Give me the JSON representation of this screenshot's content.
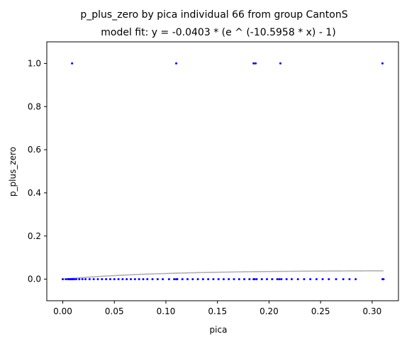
{
  "chart_data": {
    "type": "scatter",
    "title_line1": "p_plus_zero by pica individual 66 from group CantonS",
    "title_line2": "model fit: y = -0.0403 * (e ^ (-10.5958 * x) - 1)",
    "xlabel": "pica",
    "ylabel": "p_plus_zero",
    "xlim": [
      -0.0155,
      0.3255
    ],
    "ylim": [
      -0.1,
      1.1
    ],
    "x_ticks": [
      0.0,
      0.05,
      0.1,
      0.15,
      0.2,
      0.25,
      0.3
    ],
    "x_tick_labels": [
      "0.00",
      "0.05",
      "0.10",
      "0.15",
      "0.20",
      "0.25",
      "0.30"
    ],
    "y_ticks": [
      0.0,
      0.2,
      0.4,
      0.6,
      0.8,
      1.0
    ],
    "y_tick_labels": [
      "0.0",
      "0.2",
      "0.4",
      "0.6",
      "0.8",
      "1.0"
    ],
    "grid": false,
    "legend": "none",
    "colors": {
      "points": "#0000ff",
      "fit_line": "#b0b0b0",
      "axes": "#000000"
    },
    "fit": {
      "a": -0.0403,
      "b": -10.5958
    },
    "series": [
      {
        "values_x": [
          0.009,
          0.11,
          0.185,
          0.187,
          0.211,
          0.31,
          0.0,
          0.003,
          0.005,
          0.006,
          0.007,
          0.008,
          0.009,
          0.01,
          0.011,
          0.013,
          0.016,
          0.019,
          0.022,
          0.026,
          0.03,
          0.034,
          0.038,
          0.042,
          0.046,
          0.05,
          0.054,
          0.058,
          0.062,
          0.066,
          0.07,
          0.074,
          0.078,
          0.082,
          0.087,
          0.092,
          0.097,
          0.103,
          0.108,
          0.11,
          0.111,
          0.116,
          0.121,
          0.126,
          0.131,
          0.136,
          0.141,
          0.146,
          0.151,
          0.156,
          0.161,
          0.166,
          0.171,
          0.176,
          0.181,
          0.185,
          0.186,
          0.188,
          0.193,
          0.198,
          0.203,
          0.208,
          0.21,
          0.212,
          0.217,
          0.222,
          0.228,
          0.234,
          0.24,
          0.246,
          0.252,
          0.258,
          0.265,
          0.272,
          0.278,
          0.284,
          0.31,
          0.311
        ],
        "values_y": [
          1.0,
          1.0,
          1.0,
          1.0,
          1.0,
          1.0,
          0.0,
          0.0,
          0.0,
          0.0,
          0.0,
          0.0,
          0.0,
          0.0,
          0.0,
          0.0,
          0.0,
          0.0,
          0.0,
          0.0,
          0.0,
          0.0,
          0.0,
          0.0,
          0.0,
          0.0,
          0.0,
          0.0,
          0.0,
          0.0,
          0.0,
          0.0,
          0.0,
          0.0,
          0.0,
          0.0,
          0.0,
          0.0,
          0.0,
          0.0,
          0.0,
          0.0,
          0.0,
          0.0,
          0.0,
          0.0,
          0.0,
          0.0,
          0.0,
          0.0,
          0.0,
          0.0,
          0.0,
          0.0,
          0.0,
          0.0,
          0.0,
          0.0,
          0.0,
          0.0,
          0.0,
          0.0,
          0.0,
          0.0,
          0.0,
          0.0,
          0.0,
          0.0,
          0.0,
          0.0,
          0.0,
          0.0,
          0.0,
          0.0,
          0.0,
          0.0,
          0.0,
          0.0
        ]
      }
    ]
  }
}
